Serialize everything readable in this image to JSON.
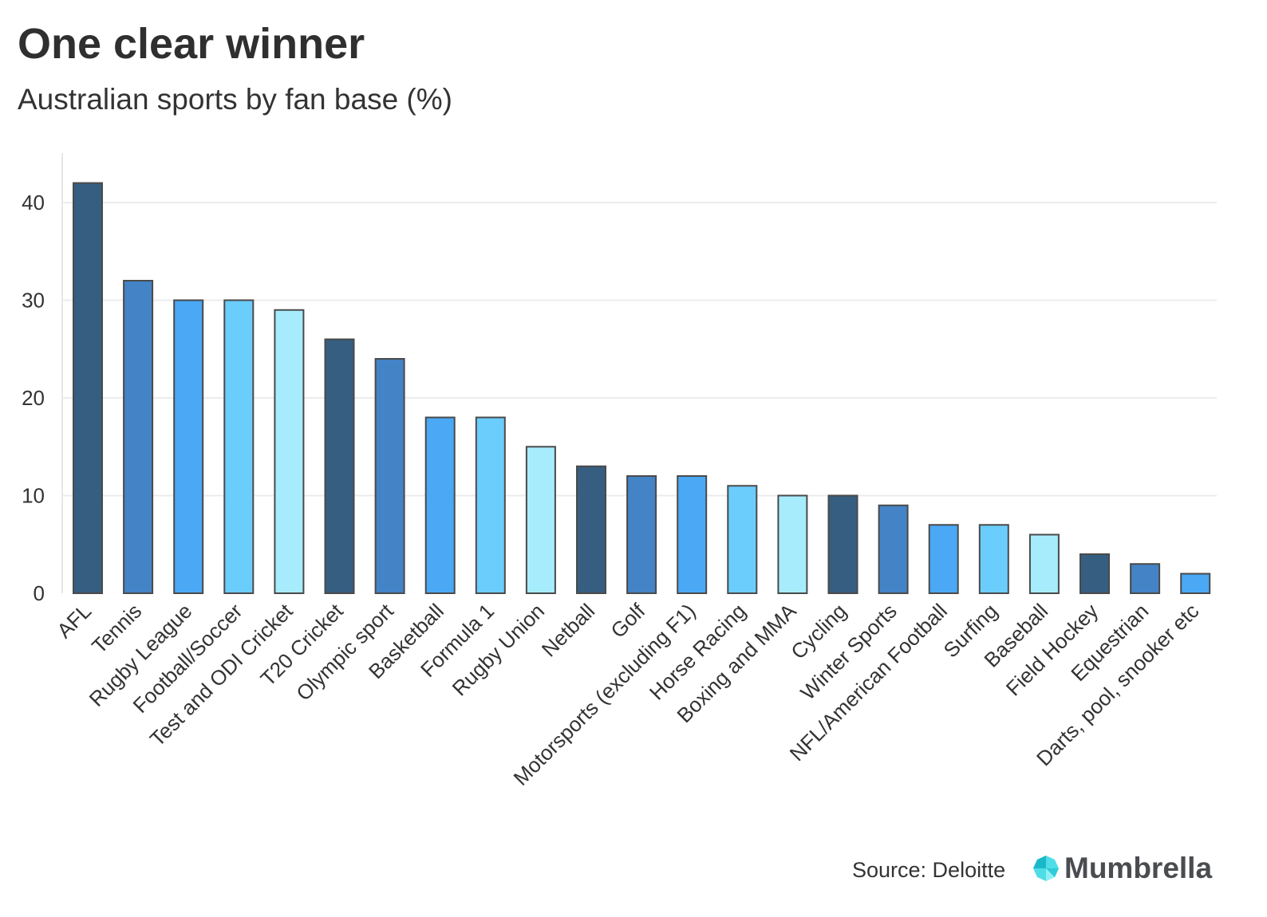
{
  "chart_data": {
    "type": "bar",
    "title": "One clear winner",
    "subtitle": "Australian sports by fan base (%)",
    "categories": [
      "AFL",
      "Tennis",
      "Rugby League",
      "Football/Soccer",
      "Test and ODI Cricket",
      "T20 Cricket",
      "Olympic sport",
      "Basketball",
      "Formula 1",
      "Rugby Union",
      "Netball",
      "Golf",
      "Motorsports (excluding F1)",
      "Horse Racing",
      "Boxing and MMA",
      "Cycling",
      "Winter Sports",
      "NFL/American Football",
      "Surfing",
      "Baseball",
      "Field Hockey",
      "Equestrian",
      "Darts, pool, snooker etc"
    ],
    "values": [
      42,
      32,
      30,
      30,
      29,
      26,
      24,
      18,
      18,
      15,
      13,
      12,
      12,
      11,
      10,
      10,
      9,
      7,
      7,
      6,
      4,
      3,
      2
    ],
    "ylim": [
      0,
      45
    ],
    "yticks": [
      0,
      10,
      20,
      30,
      40
    ],
    "grid": true,
    "colors": [
      "#365e80",
      "#4383c6",
      "#4aa8f5",
      "#6bcdfc",
      "#a6ecfc"
    ]
  },
  "source": "Source: Deloitte",
  "brand": "Mumbrella"
}
